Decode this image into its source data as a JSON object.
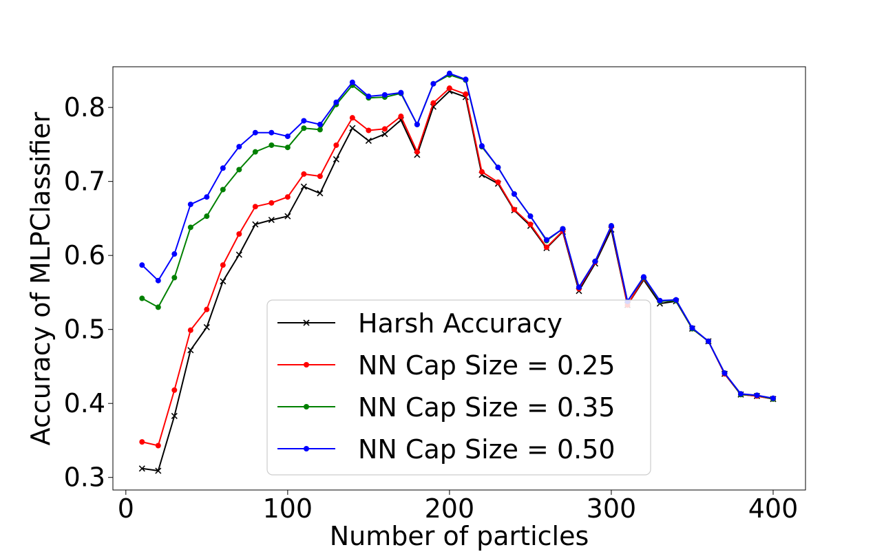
{
  "colors": {
    "harsh": "#000000",
    "cap025": "#ff0000",
    "cap035": "#008000",
    "cap050": "#0000ff"
  },
  "chart_data": {
    "type": "line",
    "title": "",
    "xlabel": "Number of particles",
    "ylabel": "Accuracy of MLPClassifier",
    "xlim": [
      -8,
      420
    ],
    "ylim": [
      0.283,
      0.855
    ],
    "xticks": [
      0,
      100,
      200,
      300,
      400
    ],
    "xtick_labels": [
      "0",
      "100",
      "200",
      "300",
      "400"
    ],
    "yticks": [
      0.3,
      0.4,
      0.5,
      0.6,
      0.7,
      0.8
    ],
    "ytick_labels": [
      "0.3",
      "0.4",
      "0.5",
      "0.6",
      "0.7",
      "0.8"
    ],
    "grid": false,
    "legend_position": "lower-center",
    "x": [
      10,
      20,
      30,
      40,
      50,
      60,
      70,
      80,
      90,
      100,
      110,
      120,
      130,
      140,
      150,
      160,
      170,
      180,
      190,
      200,
      210,
      220,
      230,
      240,
      250,
      260,
      270,
      280,
      290,
      300,
      310,
      320,
      330,
      340,
      350,
      360,
      370,
      380,
      390,
      400
    ],
    "series": [
      {
        "name": "Harsh Accuracy",
        "color": "#000000",
        "marker": "x",
        "values": [
          0.312,
          0.309,
          0.383,
          0.472,
          0.503,
          0.565,
          0.601,
          0.642,
          0.648,
          0.653,
          0.693,
          0.684,
          0.73,
          0.772,
          0.755,
          0.764,
          0.783,
          0.736,
          0.801,
          0.822,
          0.814,
          0.709,
          0.697,
          0.661,
          0.64,
          0.61,
          0.632,
          0.552,
          0.589,
          0.635,
          0.533,
          0.567,
          0.535,
          0.538,
          0.501,
          0.484,
          0.44,
          0.412,
          0.41,
          0.406
        ]
      },
      {
        "name": "NN Cap Size = 0.25",
        "color": "#ff0000",
        "marker": "o",
        "values": [
          0.348,
          0.343,
          0.418,
          0.499,
          0.527,
          0.587,
          0.629,
          0.666,
          0.671,
          0.679,
          0.71,
          0.707,
          0.749,
          0.786,
          0.769,
          0.771,
          0.788,
          0.74,
          0.806,
          0.826,
          0.818,
          0.713,
          0.699,
          0.662,
          0.642,
          0.611,
          0.633,
          0.555,
          0.591,
          0.639,
          0.533,
          0.569,
          0.538,
          0.539,
          0.501,
          0.484,
          0.44,
          0.412,
          0.41,
          0.406
        ]
      },
      {
        "name": "NN Cap Size = 0.35",
        "color": "#008000",
        "marker": "o",
        "values": [
          0.542,
          0.53,
          0.57,
          0.638,
          0.653,
          0.689,
          0.716,
          0.74,
          0.749,
          0.746,
          0.772,
          0.77,
          0.804,
          0.83,
          0.813,
          0.814,
          0.819,
          0.777,
          0.832,
          0.844,
          0.837,
          0.747,
          0.719,
          0.683,
          0.653,
          0.62,
          0.636,
          0.557,
          0.592,
          0.64,
          0.538,
          0.57,
          0.538,
          0.539,
          0.501,
          0.484,
          0.441,
          0.412,
          0.411,
          0.406
        ]
      },
      {
        "name": "NN Cap Size = 0.50",
        "color": "#0000ff",
        "marker": "o",
        "values": [
          0.587,
          0.566,
          0.602,
          0.669,
          0.679,
          0.718,
          0.747,
          0.766,
          0.766,
          0.761,
          0.782,
          0.777,
          0.807,
          0.834,
          0.815,
          0.817,
          0.82,
          0.777,
          0.832,
          0.846,
          0.838,
          0.748,
          0.719,
          0.683,
          0.653,
          0.621,
          0.636,
          0.557,
          0.592,
          0.64,
          0.538,
          0.571,
          0.539,
          0.54,
          0.502,
          0.484,
          0.441,
          0.413,
          0.411,
          0.407
        ]
      }
    ]
  }
}
